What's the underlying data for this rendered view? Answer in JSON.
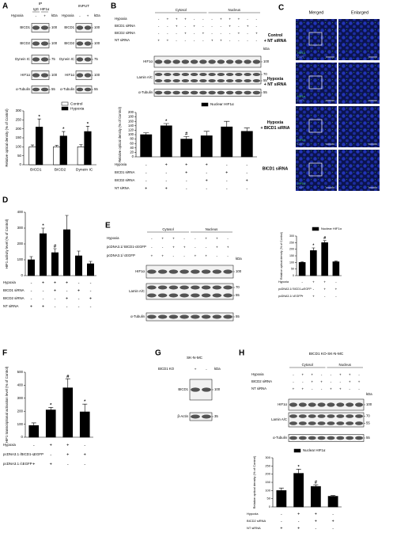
{
  "panel_labels": [
    "A",
    "B",
    "C",
    "D",
    "E",
    "F",
    "G",
    "H"
  ],
  "blots": [
    {
      "title": "IP",
      "groups": [
        "IgG",
        "HIF1α"
      ],
      "conditions": [
        {
          "label": "Hypoxia",
          "signs": [
            "-",
            "+"
          ]
        }
      ],
      "kda_label": "kDa",
      "rows": [
        {
          "label": "BICD1",
          "kda": [
            100
          ]
        },
        {
          "label": "BICD2",
          "kda": [
            100
          ]
        },
        {
          "label": "Dynein IC",
          "kda": [
            75
          ]
        },
        {
          "label": "HIF1α",
          "kda": [
            100
          ]
        },
        {
          "label": "α-Tubulin",
          "kda": [
            55
          ]
        }
      ]
    },
    {
      "title": "INPUT",
      "conditions": [
        {
          "label": "Hypoxia",
          "signs": [
            "-",
            "+"
          ]
        }
      ],
      "kda_label": "kDa",
      "rows": [
        {
          "label": "BICD1",
          "kda": [
            100
          ]
        },
        {
          "label": "BICD2",
          "kda": [
            100
          ]
        },
        {
          "label": "Dynein IC",
          "kda": [
            75
          ]
        },
        {
          "label": "HIF1α",
          "kda": [
            100
          ]
        },
        {
          "label": "α-Tubulin",
          "kda": [
            55
          ]
        }
      ]
    },
    {
      "groups": [
        "Cytosol",
        "Nucleus"
      ],
      "kda_label": "kDa",
      "conditions": [
        {
          "label": "Hypoxia",
          "signs": [
            "-",
            "+",
            "+",
            "+",
            "-",
            "-",
            "-",
            "+",
            "+",
            "+",
            "-",
            "-"
          ]
        },
        {
          "label": "BICD1 siRNA",
          "signs": [
            "-",
            "-",
            "+",
            "-",
            "+",
            "-",
            "-",
            "-",
            "+",
            "-",
            "+",
            "-"
          ]
        },
        {
          "label": "BICD2 siRNA",
          "signs": [
            "-",
            "-",
            "-",
            "+",
            "-",
            "+",
            "-",
            "-",
            "-",
            "+",
            "-",
            "+"
          ]
        },
        {
          "label": "NT siRNA",
          "signs": [
            "+",
            "+",
            "-",
            "-",
            "-",
            "-",
            "+",
            "+",
            "-",
            "-",
            "-",
            "-"
          ]
        }
      ],
      "rows": [
        {
          "label": "HIF1α",
          "kda": [
            100
          ]
        },
        {
          "label": "Lamin A/C",
          "kda": [
            70,
            55
          ]
        },
        {
          "label": "α-Tubulin",
          "kda": [
            55
          ]
        }
      ]
    },
    {
      "groups": [
        "Cytosol",
        "Nucleus"
      ],
      "kda_label": "kDa",
      "conditions": [
        {
          "label": "Hypoxia",
          "signs": [
            "-",
            "+",
            "+",
            "-",
            "-",
            "+",
            "+",
            "-"
          ]
        },
        {
          "label": "pcDNA3.1/ BICD1-cEGFP",
          "signs": [
            "-",
            "-",
            "+",
            "+",
            "-",
            "-",
            "+",
            "+"
          ]
        },
        {
          "label": "pcDNA3.1/ cEGFP",
          "signs": [
            "+",
            "+",
            "-",
            "-",
            "+",
            "+",
            "-",
            "-"
          ]
        }
      ],
      "rows": [
        {
          "label": "HIF1α",
          "kda": [
            100
          ]
        },
        {
          "label": "Lamin A/C",
          "kda": [
            70,
            55
          ]
        },
        {
          "label": "α-Tubulin",
          "kda": [
            55
          ]
        }
      ]
    },
    {
      "title": "SK-N-MC",
      "kda_label": "kDa",
      "conditions": [
        {
          "label": "BICD1 KO",
          "signs": [
            "+",
            "-"
          ]
        }
      ],
      "rows": [
        {
          "label": "BICD1",
          "kda": [
            100
          ]
        },
        {
          "label": "β-Actin",
          "kda": [
            35
          ]
        }
      ]
    },
    {
      "title": "BICD1 KO-SK-N-MC",
      "groups": [
        "Cytosol",
        "Nucleus"
      ],
      "kda_label": "kDa",
      "conditions": [
        {
          "label": "Hypoxia",
          "signs": [
            "-",
            "+",
            "+",
            "-",
            "-",
            "+",
            "+",
            "-"
          ]
        },
        {
          "label": "BICD2 siRNA",
          "signs": [
            "-",
            "-",
            "+",
            "+",
            "-",
            "-",
            "+",
            "+"
          ]
        },
        {
          "label": "NT siRNA",
          "signs": [
            "+",
            "+",
            "-",
            "-",
            "+",
            "+",
            "-",
            "-"
          ]
        }
      ],
      "rows": [
        {
          "label": "HIF1α",
          "kda": [
            100
          ]
        },
        {
          "label": "Lamin A/C",
          "kda": [
            70,
            55
          ]
        },
        {
          "label": "α-Tubulin",
          "kda": [
            55
          ]
        }
      ]
    }
  ],
  "images": {
    "columns": [
      "Merged",
      "Enlarged"
    ],
    "rows": [
      [
        "Control",
        "+ NT siRNA"
      ],
      [
        "Hypoxia",
        "+ NT siRNA"
      ],
      [
        "Hypoxia",
        "+ BICD1 siRNA"
      ],
      [
        "BICD1 siRNA"
      ]
    ],
    "channels": [
      "HIF1α",
      "DAPI"
    ]
  },
  "chart_data": [
    {
      "type": "bar",
      "ylabel": "Relative optical density (% of Control)",
      "categories": [
        "BICD1",
        "BICD2",
        "Dynein IC"
      ],
      "series": [
        {
          "name": "Control",
          "color": "#ffffff",
          "values": [
            100,
            100,
            100
          ],
          "errors": [
            10,
            8,
            12
          ]
        },
        {
          "name": "Hypoxia",
          "color": "#000000",
          "values": [
            210,
            160,
            185
          ],
          "errors": [
            45,
            25,
            30
          ],
          "annotations": [
            "*",
            "*",
            "*"
          ]
        }
      ],
      "ylim": [
        0,
        300
      ],
      "yticks": [
        0,
        50,
        100,
        150,
        200,
        250,
        300
      ]
    },
    {
      "type": "bar",
      "ylabel": "Relative optical density (% of Control)",
      "series": [
        {
          "name": "Nuclear HIF1α",
          "color": "#000000",
          "values": [
            100,
            140,
            80,
            95,
            135,
            115
          ],
          "errors": [
            8,
            10,
            12,
            20,
            25,
            15
          ],
          "annotations": [
            null,
            "*",
            "#",
            null,
            null,
            null
          ]
        }
      ],
      "conditions": [
        {
          "label": "Hypoxia",
          "signs": [
            "-",
            "+",
            "+",
            "+",
            "-",
            "-"
          ]
        },
        {
          "label": "BICD1 siRNA",
          "signs": [
            "-",
            "-",
            "+",
            "-",
            "+",
            "-"
          ]
        },
        {
          "label": "BICD2 siRNA",
          "signs": [
            "-",
            "-",
            "-",
            "+",
            "-",
            "+"
          ]
        },
        {
          "label": "NT siRNA",
          "signs": [
            "+",
            "+",
            "-",
            "-",
            "-",
            "-"
          ]
        }
      ],
      "ylim": [
        0,
        200
      ],
      "yticks": [
        0,
        20,
        40,
        60,
        80,
        100,
        120,
        140,
        160,
        180,
        200
      ]
    },
    {
      "type": "bar",
      "ylabel": "HIF1 activity level (% of Control)",
      "color": "#000000",
      "values": [
        100,
        265,
        145,
        290,
        125,
        75
      ],
      "errors": [
        20,
        35,
        25,
        90,
        30,
        15
      ],
      "annotations": [
        null,
        "*",
        "#",
        null,
        null,
        null
      ],
      "conditions": [
        {
          "label": "Hypoxia",
          "signs": [
            "-",
            "+",
            "+",
            "+",
            "-",
            "-"
          ]
        },
        {
          "label": "BICD1 siRNA",
          "signs": [
            "-",
            "-",
            "+",
            "-",
            "+",
            "-"
          ]
        },
        {
          "label": "BICD2 siRNA",
          "signs": [
            "-",
            "-",
            "-",
            "+",
            "-",
            "+"
          ]
        },
        {
          "label": "NT siRNA",
          "signs": [
            "+",
            "+",
            "-",
            "-",
            "-",
            "-"
          ]
        }
      ],
      "ylim": [
        0,
        400
      ],
      "yticks": [
        0,
        100,
        200,
        300,
        400
      ]
    },
    {
      "type": "bar",
      "ylabel": "Relative optical density (% of Control)",
      "series": [
        {
          "name": "Nuclear HIF1α",
          "color": "#000000",
          "values": [
            100,
            190,
            250,
            105
          ],
          "errors": [
            5,
            20,
            15,
            5
          ],
          "annotations": [
            null,
            "*",
            "#",
            null
          ]
        }
      ],
      "conditions": [
        {
          "label": "Hypoxia",
          "signs": [
            "-",
            "+",
            "+",
            "-"
          ]
        },
        {
          "label": "pcDNA3.1/ BICD1-cEGFP",
          "signs": [
            "-",
            "-",
            "+",
            "+"
          ]
        },
        {
          "label": "pcDNA3.1/ cEGFP",
          "signs": [
            "+",
            "+",
            "-",
            "-"
          ]
        }
      ],
      "ylim": [
        0,
        300
      ],
      "yticks": [
        0,
        50,
        100,
        150,
        200,
        250,
        300
      ]
    },
    {
      "type": "bar",
      "ylabel": "HIF1 transcriptional activation level (% of Control)",
      "color": "#000000",
      "values": [
        90,
        210,
        380,
        195
      ],
      "errors": [
        20,
        20,
        70,
        60
      ],
      "annotations": [
        null,
        "*",
        "#",
        "*"
      ],
      "conditions": [
        {
          "label": "Hypoxia",
          "signs": [
            "-",
            "+",
            "+",
            "-"
          ]
        },
        {
          "label": "pcDNA3.1 /BICD1-cEGFP",
          "signs": [
            "-",
            "-",
            "+",
            "+"
          ]
        },
        {
          "label": "pcDNA3.1 /cEGFP",
          "signs": [
            "+",
            "+",
            "-",
            "-"
          ]
        }
      ],
      "ylim": [
        0,
        500
      ],
      "yticks": [
        0,
        100,
        200,
        300,
        400,
        500
      ]
    },
    {
      "type": "bar",
      "ylabel": "Relative optical density (% of Control)",
      "series": [
        {
          "name": "Nuclear HIF1α",
          "color": "#000000",
          "values": [
            100,
            205,
            125,
            65
          ],
          "errors": [
            15,
            25,
            10,
            5
          ],
          "annotations": [
            null,
            "*",
            "#",
            null
          ]
        }
      ],
      "conditions": [
        {
          "label": "Hypoxia",
          "signs": [
            "-",
            "+",
            "+",
            "-"
          ]
        },
        {
          "label": "BICD2 siRNA",
          "signs": [
            "-",
            "-",
            "+",
            "+"
          ]
        },
        {
          "label": "NT siRNA",
          "signs": [
            "+",
            "+",
            "-",
            "-"
          ]
        }
      ],
      "ylim": [
        0,
        300
      ],
      "yticks": [
        0,
        50,
        100,
        150,
        200,
        250,
        300
      ]
    }
  ]
}
